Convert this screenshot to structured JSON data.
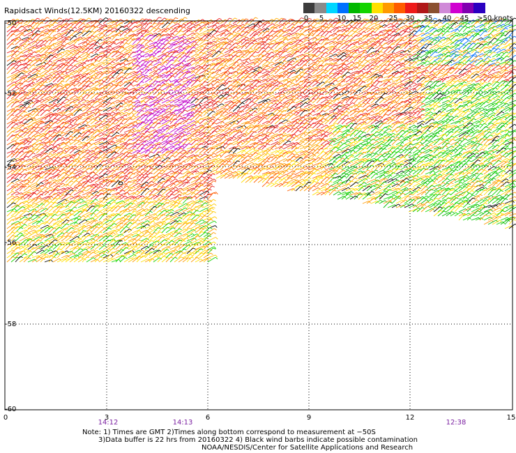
{
  "title": "Rapidsact Winds(12.5KM) 20160322 descending",
  "legend": {
    "labels": [
      "0",
      "5",
      "10",
      "15",
      "20",
      "25",
      "30",
      "35",
      "40",
      "45",
      ">50 knots"
    ],
    "colors": [
      "#3c3c3c",
      "#8a8a8a",
      "#00d6ff",
      "#0070ff",
      "#00b800",
      "#13d400",
      "#ffe000",
      "#ff9a00",
      "#ff5c00",
      "#ee1a1a",
      "#b01818",
      "#8a5030",
      "#d08ad8",
      "#d000d0",
      "#8000b0",
      "#2a00c0"
    ]
  },
  "axes": {
    "y_labels": [
      "-50",
      "-52",
      "-54",
      "-56",
      "-58",
      "-60"
    ],
    "x_labels": [
      "0",
      "3",
      "6",
      "9",
      "12",
      "15"
    ],
    "time_labels": [
      "14:12",
      "14:13",
      "12:38"
    ]
  },
  "notes": [
    "Note: 1) Times are GMT 2)Times along bottom correspond to measurement at −50S",
    "3)Data buffer is 22 hrs from 20160322 4) Black wind barbs indicate possible contamination",
    "NOAA/NESDIS/Center for Satellite Applications and Research"
  ]
}
